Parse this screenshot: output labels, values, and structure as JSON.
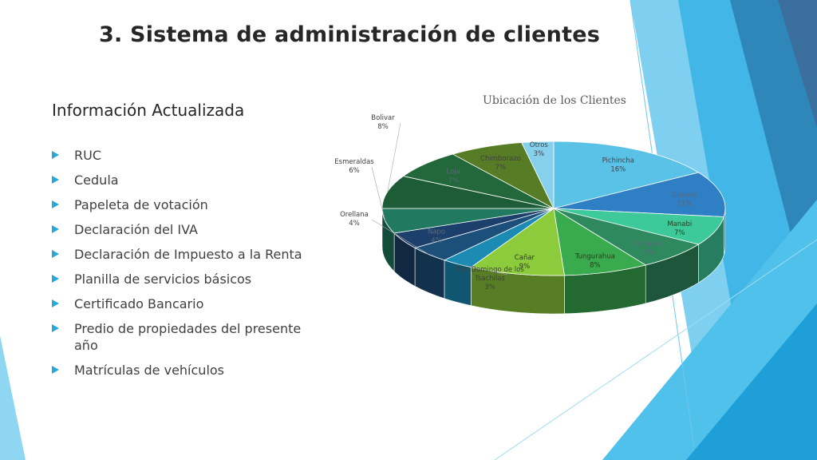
{
  "slide": {
    "title": "3. Sistema de administración de clientes",
    "subtitle": "Información Actualizada",
    "bullets": [
      "RUC",
      "Cedula",
      "Papeleta de votación",
      "Declaración del IVA",
      "Declaración de Impuesto a la Renta",
      "Planilla de servicios básicos",
      "Certificado Bancario",
      "Predio de propiedades del presente año",
      "Matrículas de vehículos"
    ],
    "bullet_icon": "triangle-right-icon",
    "accent_color": "#29a7d8"
  },
  "chart_data": {
    "type": "pie",
    "variant": "3d",
    "title": "Ubicación de los Clientes",
    "slices": [
      {
        "label": "Pichincha",
        "pct_label": "16%",
        "value": 16,
        "color": "#5bc2e7"
      },
      {
        "label": "Guayas",
        "pct_label": "11%",
        "value": 11,
        "color": "#2e7fc4"
      },
      {
        "label": "Manabi",
        "pct_label": "7%",
        "value": 7,
        "color": "#3dc99a"
      },
      {
        "label": "Cotopaxi",
        "pct_label": "7%",
        "value": 7,
        "color": "#2e8a5e"
      },
      {
        "label": "Tungurahua",
        "pct_label": "8%",
        "value": 8,
        "color": "#3aaa4f"
      },
      {
        "label": "Cañar",
        "pct_label": "9%",
        "value": 9,
        "color": "#8ccc3c"
      },
      {
        "label": "Sto. Domingo de los Tsachilas",
        "pct_label": "3%",
        "value": 3,
        "color": "#1b8bb4"
      },
      {
        "label": "Orellana",
        "pct_label": "4%",
        "value": 4,
        "color": "#1c4f7a"
      },
      {
        "label": "Napo",
        "pct_label": "4%",
        "value": 4,
        "color": "#1d3f6b"
      },
      {
        "label": "Esmeraldas",
        "pct_label": "6%",
        "value": 6,
        "color": "#217a60"
      },
      {
        "label": "Bolivar",
        "pct_label": "8%",
        "value": 8,
        "color": "#1d5c36"
      },
      {
        "label": "Loja",
        "pct_label": "7%",
        "value": 7,
        "color": "#23683a"
      },
      {
        "label": "Chimborazo",
        "pct_label": "7%",
        "value": 7,
        "color": "#567d25"
      },
      {
        "label": "Otros",
        "pct_label": "3%",
        "value": 3,
        "color": "#86d0ec"
      }
    ]
  }
}
